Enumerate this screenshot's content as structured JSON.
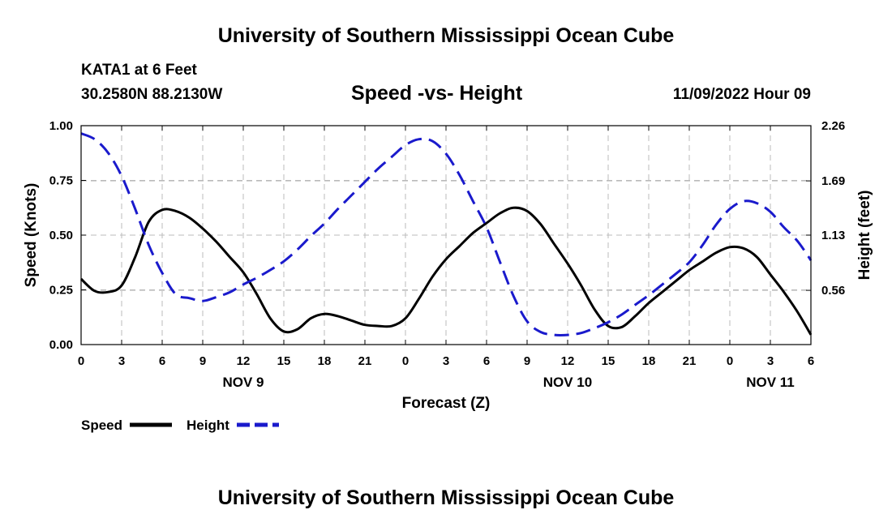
{
  "header": {
    "title": "University of Southern Mississippi Ocean Cube",
    "station": "KATA1 at 6 Feet",
    "coordinates": "30.2580N  88.2130W",
    "chart_title": "Speed -vs- Height",
    "timestamp": "11/09/2022 Hour 09"
  },
  "footer": {
    "title": "University of Southern Mississippi Ocean Cube"
  },
  "colors": {
    "speed": "#000000",
    "height": "#1a1acc",
    "grid": "#bbbbbb"
  },
  "chart_data": {
    "type": "line",
    "title": "Speed -vs- Height",
    "xlabel": "Forecast (Z)",
    "ylabel_left": "Speed (Knots)",
    "ylabel_right": "Height (feet)",
    "xlim": [
      0,
      54
    ],
    "ylim_left": [
      0,
      1.0
    ],
    "ylim_right": [
      0,
      2.26
    ],
    "x_ticks": [
      {
        "x": 0,
        "label": "0"
      },
      {
        "x": 3,
        "label": "3"
      },
      {
        "x": 6,
        "label": "6"
      },
      {
        "x": 9,
        "label": "9"
      },
      {
        "x": 12,
        "label": "12"
      },
      {
        "x": 15,
        "label": "15"
      },
      {
        "x": 18,
        "label": "18"
      },
      {
        "x": 21,
        "label": "21"
      },
      {
        "x": 24,
        "label": "0"
      },
      {
        "x": 27,
        "label": "3"
      },
      {
        "x": 30,
        "label": "6"
      },
      {
        "x": 33,
        "label": "9"
      },
      {
        "x": 36,
        "label": "12"
      },
      {
        "x": 39,
        "label": "15"
      },
      {
        "x": 42,
        "label": "18"
      },
      {
        "x": 45,
        "label": "21"
      },
      {
        "x": 48,
        "label": "0"
      },
      {
        "x": 51,
        "label": "3"
      },
      {
        "x": 54,
        "label": "6"
      }
    ],
    "day_labels": [
      {
        "x": 12,
        "label": "NOV 9"
      },
      {
        "x": 36,
        "label": "NOV 10"
      },
      {
        "x": 51,
        "label": "NOV 11"
      }
    ],
    "y_left_ticks": [
      {
        "v": 0,
        "label": "0.00"
      },
      {
        "v": 0.25,
        "label": "0.25"
      },
      {
        "v": 0.5,
        "label": "0.50"
      },
      {
        "v": 0.75,
        "label": "0.75"
      },
      {
        "v": 1.0,
        "label": "1.00"
      }
    ],
    "y_right_ticks": [
      {
        "v": 0.56,
        "label": "0.56"
      },
      {
        "v": 1.13,
        "label": "1.13"
      },
      {
        "v": 1.69,
        "label": "1.69"
      },
      {
        "v": 2.26,
        "label": "2.26"
      }
    ],
    "series": [
      {
        "name": "Speed",
        "axis": "left",
        "style": "solid",
        "points": [
          [
            0,
            0.3
          ],
          [
            1,
            0.245
          ],
          [
            2,
            0.24
          ],
          [
            3,
            0.27
          ],
          [
            4,
            0.4
          ],
          [
            5,
            0.56
          ],
          [
            6,
            0.615
          ],
          [
            7,
            0.61
          ],
          [
            8,
            0.58
          ],
          [
            9,
            0.53
          ],
          [
            10,
            0.47
          ],
          [
            11,
            0.4
          ],
          [
            12,
            0.33
          ],
          [
            13,
            0.23
          ],
          [
            14,
            0.12
          ],
          [
            15,
            0.06
          ],
          [
            16,
            0.07
          ],
          [
            17,
            0.12
          ],
          [
            18,
            0.14
          ],
          [
            19,
            0.13
          ],
          [
            20,
            0.11
          ],
          [
            21,
            0.09
          ],
          [
            22,
            0.085
          ],
          [
            23,
            0.085
          ],
          [
            24,
            0.12
          ],
          [
            25,
            0.21
          ],
          [
            26,
            0.31
          ],
          [
            27,
            0.39
          ],
          [
            28,
            0.45
          ],
          [
            29,
            0.51
          ],
          [
            30,
            0.555
          ],
          [
            31,
            0.6
          ],
          [
            32,
            0.625
          ],
          [
            33,
            0.61
          ],
          [
            34,
            0.55
          ],
          [
            35,
            0.46
          ],
          [
            36,
            0.37
          ],
          [
            37,
            0.27
          ],
          [
            38,
            0.16
          ],
          [
            39,
            0.085
          ],
          [
            40,
            0.08
          ],
          [
            41,
            0.13
          ],
          [
            42,
            0.19
          ],
          [
            43,
            0.24
          ],
          [
            44,
            0.29
          ],
          [
            45,
            0.34
          ],
          [
            46,
            0.38
          ],
          [
            47,
            0.42
          ],
          [
            48,
            0.445
          ],
          [
            49,
            0.44
          ],
          [
            50,
            0.4
          ],
          [
            51,
            0.32
          ],
          [
            52,
            0.24
          ],
          [
            53,
            0.15
          ],
          [
            54,
            0.045
          ]
        ]
      },
      {
        "name": "Height",
        "axis": "right",
        "style": "dashed",
        "points": [
          [
            0,
            2.18
          ],
          [
            1,
            2.12
          ],
          [
            2,
            1.98
          ],
          [
            3,
            1.74
          ],
          [
            4,
            1.4
          ],
          [
            5,
            1.03
          ],
          [
            6,
            0.74
          ],
          [
            7,
            0.52
          ],
          [
            8,
            0.48
          ],
          [
            9,
            0.45
          ],
          [
            10,
            0.49
          ],
          [
            11,
            0.54
          ],
          [
            12,
            0.62
          ],
          [
            13,
            0.69
          ],
          [
            14,
            0.77
          ],
          [
            15,
            0.86
          ],
          [
            16,
            0.98
          ],
          [
            17,
            1.12
          ],
          [
            18,
            1.25
          ],
          [
            19,
            1.4
          ],
          [
            20,
            1.54
          ],
          [
            21,
            1.68
          ],
          [
            22,
            1.82
          ],
          [
            23,
            1.94
          ],
          [
            24,
            2.06
          ],
          [
            25,
            2.12
          ],
          [
            26,
            2.1
          ],
          [
            27,
            1.97
          ],
          [
            28,
            1.75
          ],
          [
            29,
            1.48
          ],
          [
            30,
            1.21
          ],
          [
            31,
            0.85
          ],
          [
            32,
            0.5
          ],
          [
            33,
            0.24
          ],
          [
            34,
            0.13
          ],
          [
            35,
            0.1
          ],
          [
            36,
            0.1
          ],
          [
            37,
            0.12
          ],
          [
            38,
            0.17
          ],
          [
            39,
            0.23
          ],
          [
            40,
            0.31
          ],
          [
            41,
            0.41
          ],
          [
            42,
            0.51
          ],
          [
            43,
            0.62
          ],
          [
            44,
            0.73
          ],
          [
            45,
            0.85
          ],
          [
            46,
            1.03
          ],
          [
            47,
            1.24
          ],
          [
            48,
            1.4
          ],
          [
            49,
            1.48
          ],
          [
            50,
            1.46
          ],
          [
            51,
            1.37
          ],
          [
            52,
            1.21
          ],
          [
            53,
            1.07
          ],
          [
            54,
            0.87
          ]
        ]
      }
    ],
    "legend": {
      "position": "bottom-left",
      "entries": [
        {
          "label": "Speed",
          "style": "solid"
        },
        {
          "label": "Height",
          "style": "dashed"
        }
      ]
    },
    "grid": true
  }
}
